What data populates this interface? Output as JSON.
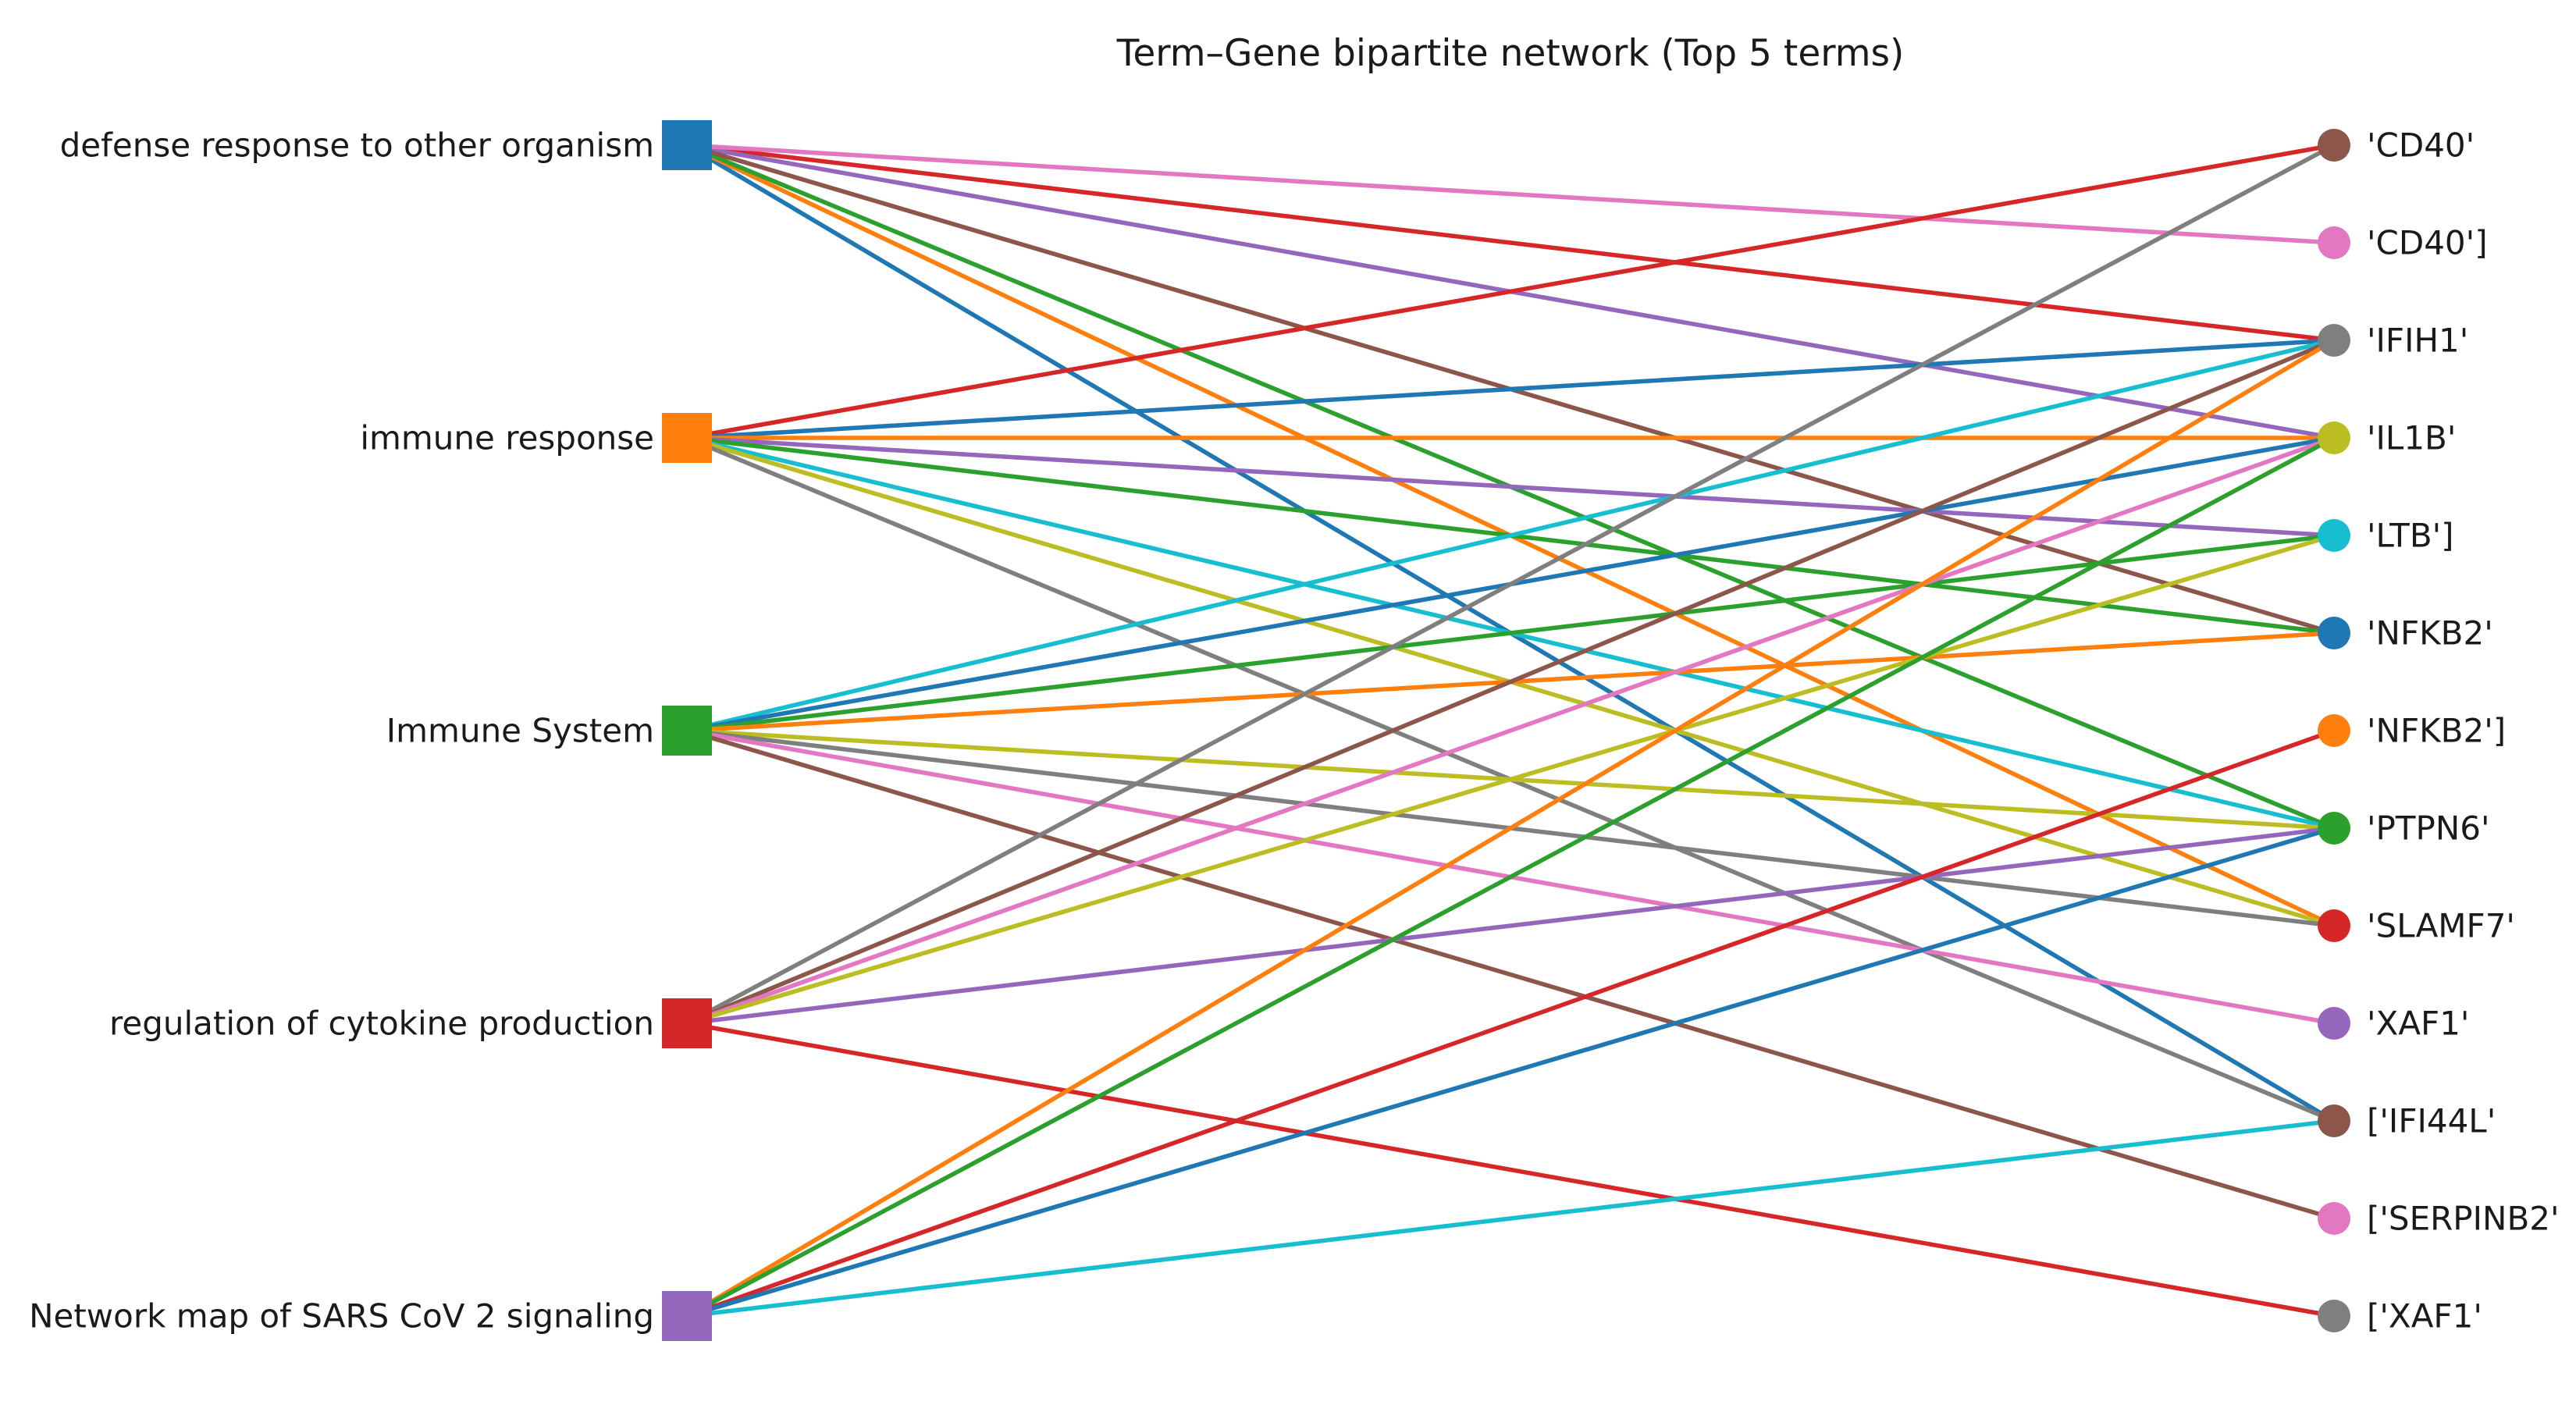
{
  "title": "Term–Gene bipartite network (Top 5 terms)",
  "terms": [
    {
      "label": "defense response to other organism",
      "color": "#1f77b4"
    },
    {
      "label": "immune response",
      "color": "#ff7f0e"
    },
    {
      "label": "Immune System",
      "color": "#2ca02c"
    },
    {
      "label": "regulation of cytokine production",
      "color": "#d62728"
    },
    {
      "label": "Network map of SARS CoV 2 signaling",
      "color": "#9467bd"
    }
  ],
  "genes": [
    {
      "label": "'CD40'",
      "color": "#8c564b"
    },
    {
      "label": "'CD40']",
      "color": "#e377c2"
    },
    {
      "label": "'IFIH1'",
      "color": "#7f7f7f"
    },
    {
      "label": "'IL1B'",
      "color": "#bcbd22"
    },
    {
      "label": "'LTB']",
      "color": "#17becf"
    },
    {
      "label": "'NFKB2'",
      "color": "#1f77b4"
    },
    {
      "label": "'NFKB2']",
      "color": "#ff7f0e"
    },
    {
      "label": "'PTPN6'",
      "color": "#2ca02c"
    },
    {
      "label": "'SLAMF7'",
      "color": "#d62728"
    },
    {
      "label": "'XAF1'",
      "color": "#9467bd"
    },
    {
      "label": "['IFI44L'",
      "color": "#8c564b"
    },
    {
      "label": "['SERPINB2'",
      "color": "#e377c2"
    },
    {
      "label": "['XAF1'",
      "color": "#7f7f7f"
    }
  ],
  "edges": [
    {
      "term": 0,
      "gene": 10,
      "color": "#1f77b4"
    },
    {
      "term": 0,
      "gene": 8,
      "color": "#ff7f0e"
    },
    {
      "term": 0,
      "gene": 7,
      "color": "#2ca02c"
    },
    {
      "term": 0,
      "gene": 2,
      "color": "#d62728"
    },
    {
      "term": 0,
      "gene": 3,
      "color": "#9467bd"
    },
    {
      "term": 0,
      "gene": 5,
      "color": "#8c564b"
    },
    {
      "term": 0,
      "gene": 1,
      "color": "#e377c2"
    },
    {
      "term": 1,
      "gene": 0,
      "color": "#d62728"
    },
    {
      "term": 1,
      "gene": 2,
      "color": "#1f77b4"
    },
    {
      "term": 1,
      "gene": 3,
      "color": "#ff7f0e"
    },
    {
      "term": 1,
      "gene": 4,
      "color": "#9467bd"
    },
    {
      "term": 1,
      "gene": 5,
      "color": "#2ca02c"
    },
    {
      "term": 1,
      "gene": 7,
      "color": "#17becf"
    },
    {
      "term": 1,
      "gene": 8,
      "color": "#bcbd22"
    },
    {
      "term": 1,
      "gene": 10,
      "color": "#7f7f7f"
    },
    {
      "term": 2,
      "gene": 2,
      "color": "#17becf"
    },
    {
      "term": 2,
      "gene": 3,
      "color": "#1f77b4"
    },
    {
      "term": 2,
      "gene": 4,
      "color": "#2ca02c"
    },
    {
      "term": 2,
      "gene": 5,
      "color": "#ff7f0e"
    },
    {
      "term": 2,
      "gene": 7,
      "color": "#bcbd22"
    },
    {
      "term": 2,
      "gene": 8,
      "color": "#7f7f7f"
    },
    {
      "term": 2,
      "gene": 9,
      "color": "#e377c2"
    },
    {
      "term": 2,
      "gene": 11,
      "color": "#8c564b"
    },
    {
      "term": 3,
      "gene": 0,
      "color": "#7f7f7f"
    },
    {
      "term": 3,
      "gene": 2,
      "color": "#8c564b"
    },
    {
      "term": 3,
      "gene": 3,
      "color": "#e377c2"
    },
    {
      "term": 3,
      "gene": 4,
      "color": "#bcbd22"
    },
    {
      "term": 3,
      "gene": 7,
      "color": "#9467bd"
    },
    {
      "term": 3,
      "gene": 12,
      "color": "#d62728"
    },
    {
      "term": 4,
      "gene": 2,
      "color": "#ff7f0e"
    },
    {
      "term": 4,
      "gene": 3,
      "color": "#2ca02c"
    },
    {
      "term": 4,
      "gene": 6,
      "color": "#d62728"
    },
    {
      "term": 4,
      "gene": 7,
      "color": "#1f77b4"
    },
    {
      "term": 4,
      "gene": 10,
      "color": "#17becf"
    }
  ]
}
